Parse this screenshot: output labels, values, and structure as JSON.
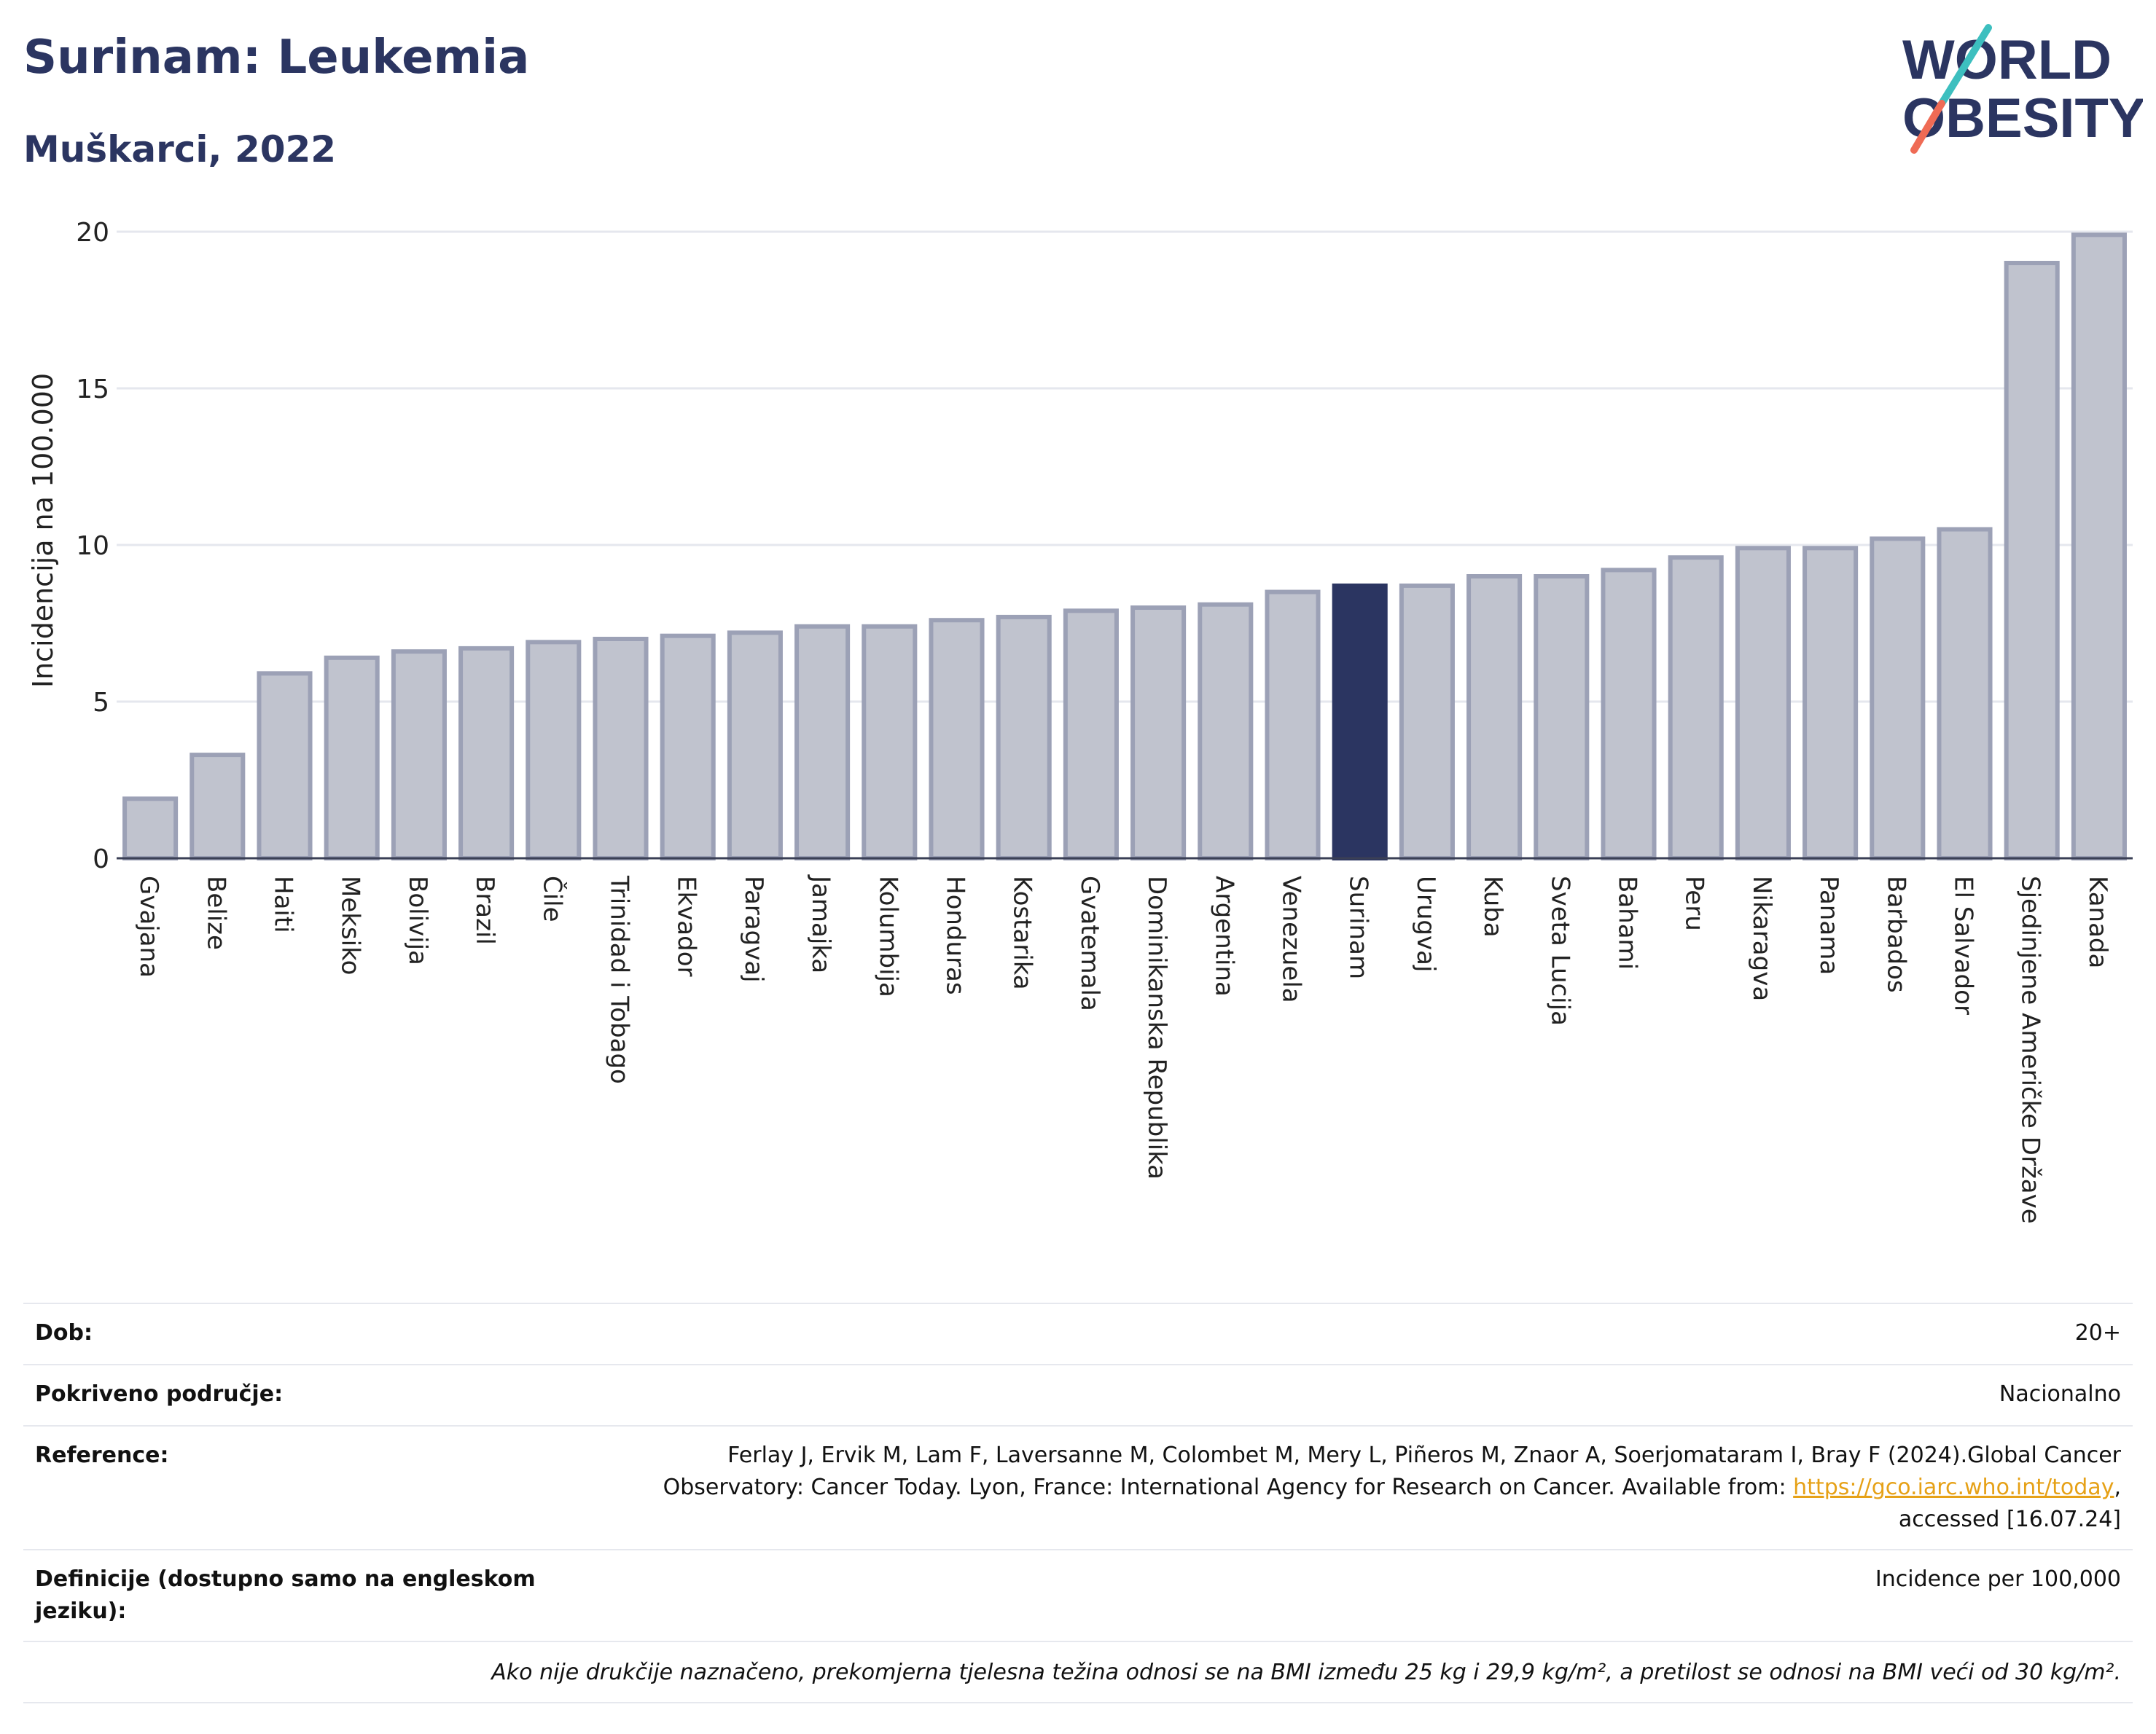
{
  "header": {
    "title": "Surinam: Leukemia",
    "subtitle": "Muškarci, 2022"
  },
  "logo": {
    "line1": "WORLD",
    "line2": "OBESITY",
    "colors": {
      "text": "#2b3561",
      "slash_top": "#3dbfbf",
      "slash_bottom": "#ef6b55"
    }
  },
  "chart_data": {
    "type": "bar",
    "title": "Surinam: Leukemia",
    "subtitle": "Muškarci, 2022",
    "ylabel": "Incidencija na 100.000",
    "xlabel": "",
    "ylim": [
      0,
      20
    ],
    "yticks": [
      0,
      5,
      10,
      15,
      20
    ],
    "grid": true,
    "highlight": "Surinam",
    "colors": {
      "bar": "#c0c3ce",
      "bar_edge": "#9ca1b6",
      "highlight": "#2b3561",
      "grid": "#e5e7ee"
    },
    "categories": [
      "Gvajana",
      "Belize",
      "Haiti",
      "Meksiko",
      "Bolivija",
      "Brazil",
      "Čile",
      "Trinidad i Tobago",
      "Ekvador",
      "Paragvaj",
      "Jamajka",
      "Kolumbija",
      "Honduras",
      "Kostarika",
      "Gvatemala",
      "Dominikanska Republika",
      "Argentina",
      "Venezuela",
      "Surinam",
      "Urugvaj",
      "Kuba",
      "Sveta Lucija",
      "Bahami",
      "Peru",
      "Nikaragva",
      "Panama",
      "Barbados",
      "El Salvador",
      "Sjedinjene Američke Države",
      "Kanada"
    ],
    "values": [
      1.9,
      3.3,
      5.9,
      6.4,
      6.6,
      6.7,
      6.9,
      7.0,
      7.1,
      7.2,
      7.4,
      7.4,
      7.6,
      7.7,
      7.9,
      8.0,
      8.1,
      8.5,
      8.7,
      8.7,
      9.0,
      9.0,
      9.2,
      9.6,
      9.9,
      9.9,
      10.2,
      10.5,
      19.0,
      19.9
    ]
  },
  "info": {
    "age": {
      "label": "Dob:",
      "value": "20+"
    },
    "coverage": {
      "label": "Pokriveno područje:",
      "value": "Nacionalno"
    },
    "reference": {
      "label": "Reference:",
      "text_before": "Ferlay J, Ervik M, Lam F, Laversanne M, Colombet M, Mery L, Piñeros M, Znaor A, Soerjomataram I, Bray F (2024).Global Cancer Observatory: Cancer Today. Lyon, France: International Agency for Research on Cancer. Available from: ",
      "link": "https://gco.iarc.who.int/today",
      "text_after": ", accessed [16.07.24]"
    },
    "definitions": {
      "label": "Definicije (dostupno samo na engleskom jeziku):",
      "value": "Incidence per 100,000"
    },
    "note": "Ako nije drukčije naznačeno, prekomjerna tjelesna težina odnosi se na BMI između 25 kg i 29,9 kg/m², a pretilost se odnosi na BMI veći od 30 kg/m²."
  }
}
